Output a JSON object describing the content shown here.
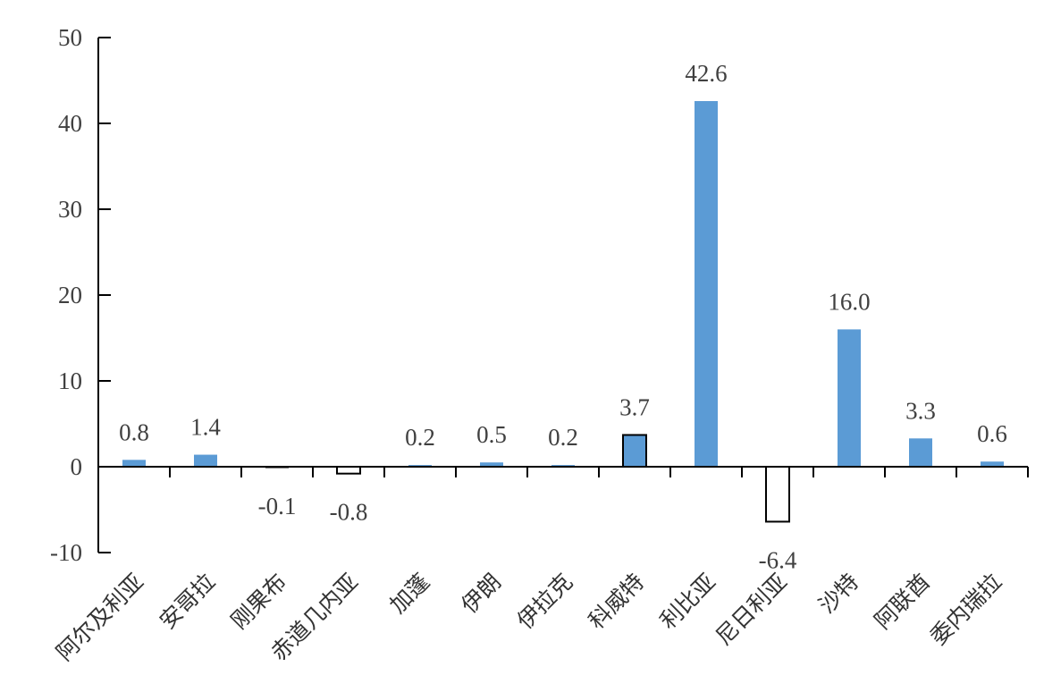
{
  "chart_data": {
    "type": "bar",
    "title": "",
    "xlabel": "",
    "ylabel": "",
    "ylim": [
      -10,
      50
    ],
    "yticks": [
      -10,
      0,
      10,
      20,
      30,
      40,
      50
    ],
    "grid": false,
    "categories": [
      "阿尔及利亚",
      "安哥拉",
      "刚果布",
      "赤道几内亚",
      "加蓬",
      "伊朗",
      "伊拉克",
      "科威特",
      "利比亚",
      "尼日利亚",
      "沙特",
      "阿联酋",
      "委内瑞拉"
    ],
    "values": [
      0.8,
      1.4,
      -0.1,
      -0.8,
      0.2,
      0.5,
      0.2,
      3.7,
      42.6,
      -6.4,
      16.0,
      3.3,
      0.6
    ],
    "data_labels": [
      "0.8",
      "1.4",
      "-0.1",
      "-0.8",
      "0.2",
      "0.5",
      "0.2",
      "3.7",
      "42.6",
      "-6.4",
      "16.0",
      "3.3",
      "0.6"
    ],
    "bar_styles": [
      "blue",
      "blue",
      "dark",
      "outline",
      "blue",
      "blue",
      "blue",
      "blue-outlined",
      "blue",
      "outline",
      "blue",
      "blue",
      "blue"
    ],
    "colors": {
      "bar": "#5B9BD5",
      "outline": "#000000",
      "text": "#404040",
      "axis": "#000000"
    }
  }
}
